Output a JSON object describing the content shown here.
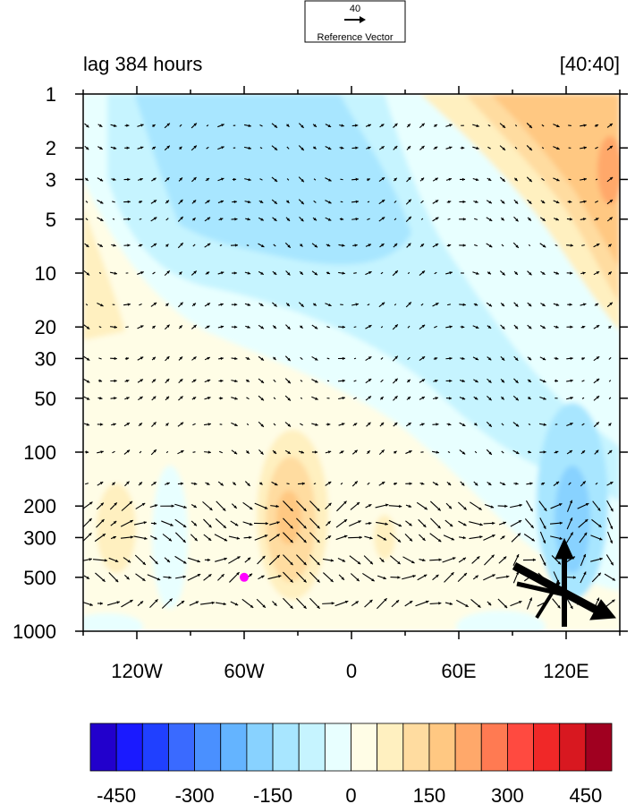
{
  "reference_vector": {
    "magnitude": "40",
    "label": "Reference Vector"
  },
  "chart_data": {
    "type": "heatmap",
    "title_left": "lag 384 hours",
    "title_right": "[40:40]",
    "x_ticks": [
      {
        "value": -120,
        "label": "120W"
      },
      {
        "value": -60,
        "label": "60W"
      },
      {
        "value": 0,
        "label": "0"
      },
      {
        "value": 60,
        "label": "60E"
      },
      {
        "value": 120,
        "label": "120E"
      }
    ],
    "y_ticks": [
      1,
      2,
      3,
      5,
      10,
      20,
      30,
      50,
      100,
      200,
      300,
      500,
      1000
    ],
    "xlim": [
      -150,
      150
    ],
    "ylim": [
      1000,
      1
    ],
    "y_scale": "log",
    "marker": {
      "lon": -60,
      "level": 500,
      "color": "#ff00ff"
    },
    "colorbar": {
      "levels": [
        -500,
        -450,
        -400,
        -350,
        -300,
        -250,
        -200,
        -150,
        -100,
        -50,
        0,
        50,
        100,
        150,
        200,
        250,
        300,
        350,
        400,
        450,
        500
      ],
      "tick_labels": [
        {
          "value": -450,
          "label": "-450"
        },
        {
          "value": -300,
          "label": "-300"
        },
        {
          "value": -150,
          "label": "-150"
        },
        {
          "value": 0,
          "label": "0"
        },
        {
          "value": 150,
          "label": "150"
        },
        {
          "value": 300,
          "label": "300"
        },
        {
          "value": 450,
          "label": "450"
        }
      ],
      "colors": [
        "#2200cc",
        "#1a1aff",
        "#2040ff",
        "#3a6aff",
        "#4a90ff",
        "#64b4ff",
        "#88d2ff",
        "#a8e6ff",
        "#c6f4ff",
        "#e8ffff",
        "#fffde6",
        "#fff0c0",
        "#ffdca0",
        "#ffc882",
        "#ffa86a",
        "#ff7a52",
        "#ff4a40",
        "#f02828",
        "#d81820",
        "#a00020"
      ]
    }
  }
}
